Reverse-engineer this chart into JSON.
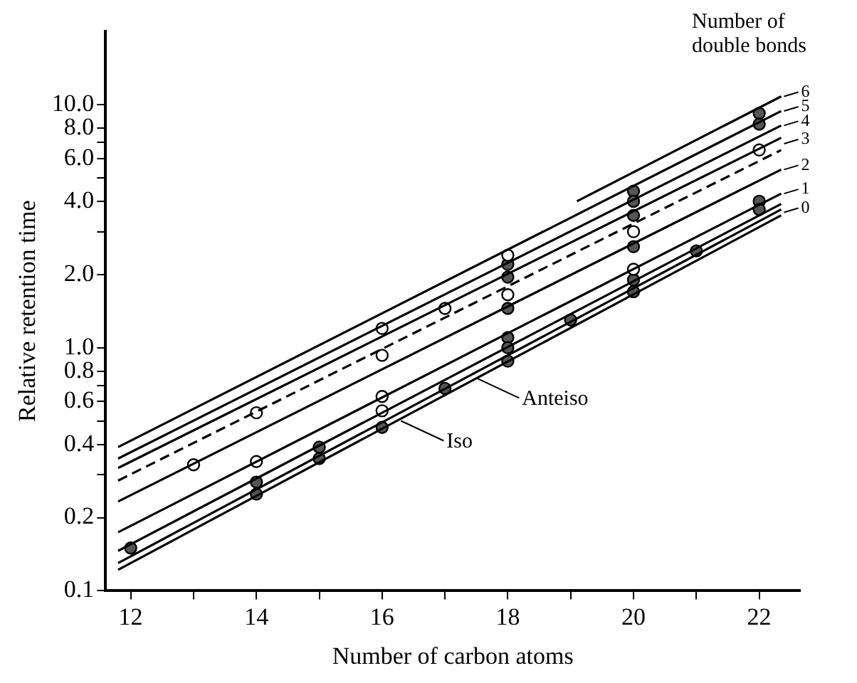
{
  "chart_data": {
    "type": "line",
    "xlabel": "Number of carbon atoms",
    "ylabel": "Relative retention time",
    "log": "y",
    "grid": false,
    "legend": false,
    "line_style": "solid",
    "marker": "none",
    "xlim": [
      11.6,
      22.65
    ],
    "ylim": [
      0.1,
      20
    ],
    "xticks": [
      12,
      {
        "value": 13,
        "label": null
      },
      14,
      {
        "value": 15,
        "label": null
      },
      16,
      {
        "value": 17,
        "label": null
      },
      18,
      {
        "value": 19,
        "label": null
      },
      20,
      {
        "value": 21,
        "label": null
      },
      22
    ],
    "yticks": [
      0.1,
      0.2,
      {
        "value": 0.3,
        "label": null
      },
      0.4,
      {
        "value": 0.5,
        "label": null
      },
      0.6,
      {
        "value": 0.7,
        "label": null
      },
      0.8,
      {
        "value": 1,
        "label": "1.0"
      },
      {
        "value": 2,
        "label": "2.0"
      },
      {
        "value": 3,
        "label": null
      },
      {
        "value": 4,
        "label": "4.0"
      },
      {
        "value": 5,
        "label": null
      },
      {
        "value": 6,
        "label": "6.0"
      },
      {
        "value": 7,
        "label": null
      },
      {
        "value": 8,
        "label": "8.0"
      },
      {
        "value": 10,
        "label": "10.0"
      }
    ],
    "series": [
      {
        "color": "#000000",
        "x": [
          19.1,
          22.35
        ],
        "values": [
          4.0,
          10.8
        ]
      },
      {
        "color": "#000000",
        "x": [
          11.8,
          22.35
        ],
        "values": [
          0.39,
          9.4
        ]
      },
      {
        "color": "#000000",
        "x": [
          11.8,
          22.35
        ],
        "values": [
          0.35,
          8.2
        ]
      },
      {
        "color": "#000000",
        "x": [
          11.8,
          22.35
        ],
        "values": [
          0.32,
          7.3
        ]
      },
      {
        "color": "#000000",
        "x": [
          11.8,
          22.35
        ],
        "values": [
          0.284,
          6.5
        ],
        "line_style": "dashed"
      },
      {
        "color": "#000000",
        "x": [
          11.8,
          22.35
        ],
        "values": [
          0.233,
          5.4
        ]
      },
      {
        "color": "#000000",
        "x": [
          11.8,
          22.35
        ],
        "values": [
          0.174,
          4.3
        ]
      },
      {
        "color": "#000000",
        "x": [
          11.8,
          22.35
        ],
        "values": [
          0.146,
          3.9
        ]
      },
      {
        "color": "#000000",
        "x": [
          11.8,
          22.35
        ],
        "values": [
          0.13,
          3.7
        ]
      },
      {
        "color": "#000000",
        "x": [
          11.8,
          22.35
        ],
        "values": [
          0.122,
          3.5
        ]
      },
      {
        "type": "scatter",
        "marker": "circle",
        "color": "#ffffff",
        "x": [
          13,
          14,
          14,
          16,
          16,
          16,
          16,
          17,
          18,
          18,
          20,
          20,
          22
        ],
        "values": [
          0.33,
          0.54,
          0.34,
          1.2,
          0.93,
          0.63,
          0.55,
          1.45,
          2.4,
          1.65,
          2.1,
          3.0,
          6.5
        ]
      },
      {
        "type": "scatter",
        "marker": "circle",
        "color": "#555555",
        "x": [
          12,
          14,
          14,
          15,
          15,
          16,
          17,
          18,
          18,
          18,
          18,
          18,
          18,
          19,
          20,
          20,
          20,
          20,
          20,
          20,
          21,
          22,
          22,
          22,
          22
        ],
        "values": [
          0.15,
          0.28,
          0.25,
          0.39,
          0.35,
          0.47,
          0.68,
          2.2,
          1.95,
          1.45,
          1.1,
          1.0,
          0.88,
          1.3,
          4.4,
          4.0,
          3.5,
          2.6,
          1.9,
          1.7,
          2.5,
          9.2,
          8.3,
          4.0,
          3.7
        ]
      }
    ],
    "annotations": [
      "Number of\ndouble bonds",
      {
        "text": "6",
        "x": 22.35,
        "y": 10.8
      },
      {
        "text": "5",
        "x": 22.35,
        "y": 9.4
      },
      {
        "text": "4",
        "x": 22.35,
        "y": 8.2
      },
      {
        "text": "3",
        "x": 22.35,
        "y": 6.9
      },
      {
        "text": "2",
        "x": 22.35,
        "y": 5.4
      },
      {
        "text": "1",
        "x": 22.35,
        "y": 4.3
      },
      {
        "text": "0",
        "x": 22.35,
        "y": 3.6
      },
      {
        "text": "Anteiso",
        "x": 17.5,
        "y": 0.75
      },
      {
        "text": "Iso",
        "x": 16.3,
        "y": 0.5
      }
    ]
  }
}
